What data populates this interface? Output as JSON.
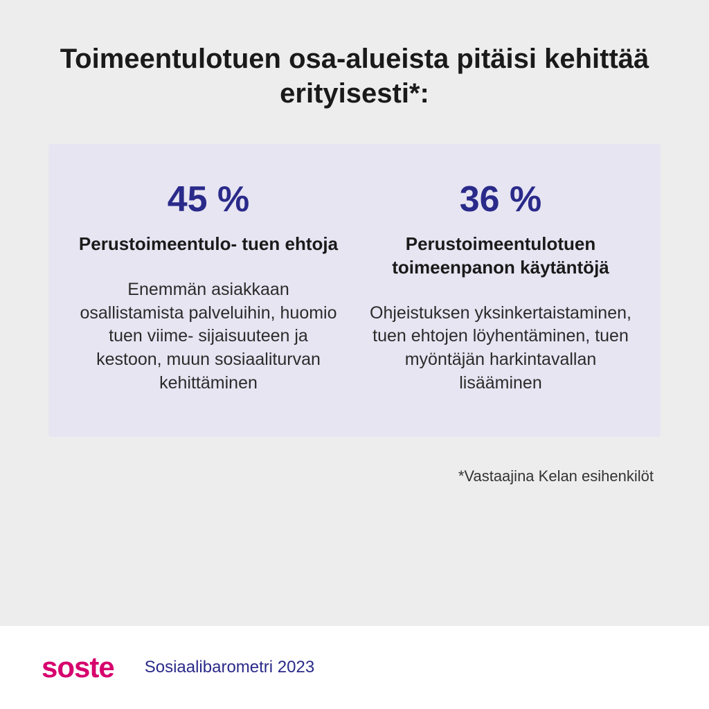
{
  "title": "Toimeentulotuen osa-alueista pitäisi kehittää erityisesti*:",
  "panel": {
    "background_color": "#e7e5f2",
    "columns": [
      {
        "stat": "45 %",
        "stat_color": "#2a2a8a",
        "subhead": "Perustoimeentulo-\ntuen ehtoja",
        "body": "Enemmän asiakkaan osallistamista palveluihin, huomio tuen viime-\nsijaisuuteen ja kestoon, muun sosiaaliturvan kehittäminen"
      },
      {
        "stat": "36 %",
        "stat_color": "#2a2a8a",
        "subhead": "Perustoimeentulotuen toimeenpanon käytäntöjä",
        "body": "Ohjeistuksen yksinkertaistaminen, tuen ehtojen löyhentäminen, tuen myöntäjän harkintavallan lisääminen"
      }
    ]
  },
  "footnote": "*Vastaajina Kelan esihenkilöt",
  "footer": {
    "logo": "soste",
    "logo_color": "#d6006d",
    "source": "Sosiaalibarometri 2023",
    "source_color": "#2a2a8a",
    "background_color": "#ffffff"
  },
  "page_background": "#ededed",
  "typography": {
    "title_fontsize": 40,
    "stat_fontsize": 52,
    "subhead_fontsize": 26,
    "body_fontsize": 25,
    "footnote_fontsize": 22,
    "logo_fontsize": 42,
    "source_fontsize": 24
  }
}
